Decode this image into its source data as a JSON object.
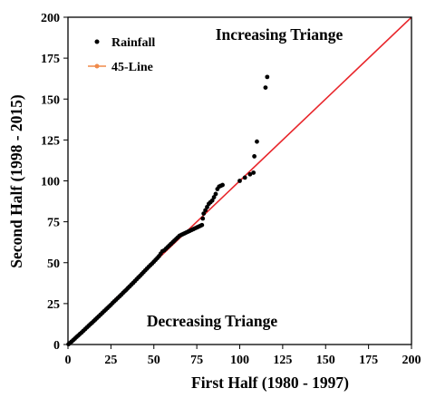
{
  "chart_data": {
    "type": "scatter",
    "xlabel": "First Half (1980 - 1997)",
    "ylabel": "Second Half (1998 - 2015)",
    "xlim": [
      0,
      200
    ],
    "ylim": [
      0,
      200
    ],
    "xticks": [
      0,
      25,
      50,
      75,
      100,
      125,
      150,
      175,
      200
    ],
    "yticks": [
      0,
      25,
      50,
      75,
      100,
      125,
      150,
      175,
      200
    ],
    "grid": false,
    "legend_position": "top-left",
    "annotations": {
      "upper": "Increasing Triange",
      "lower": "Decreasing Triange"
    },
    "series": [
      {
        "name": "Rainfall",
        "kind": "points",
        "color": "#000000",
        "x": [
          0.3,
          1,
          2,
          3,
          4,
          5,
          6,
          7,
          8,
          9,
          10,
          11,
          12,
          13,
          14,
          15,
          16,
          17,
          18,
          19,
          20,
          21,
          22,
          23,
          24,
          25,
          26,
          27,
          28,
          29,
          30,
          31,
          32,
          33,
          34,
          35,
          36,
          37,
          38,
          39,
          40,
          41,
          42,
          43,
          44,
          45,
          46,
          47,
          48,
          49,
          50,
          51,
          52,
          53,
          54,
          55,
          56,
          57,
          58,
          59,
          60,
          61,
          62,
          63,
          64,
          65,
          66,
          67,
          68,
          69,
          70,
          71,
          72,
          73,
          74,
          75,
          76,
          77,
          78,
          78.5,
          79,
          80,
          81,
          82,
          83,
          84,
          85,
          86,
          87,
          88,
          89,
          90,
          100,
          103,
          106,
          108,
          108.5,
          110,
          115,
          116
        ],
        "y": [
          0.2,
          0.8,
          1.7,
          2.6,
          3.6,
          4.6,
          5.5,
          6.5,
          7.4,
          8.4,
          9.4,
          10.4,
          11.4,
          12.4,
          13.3,
          14.3,
          15.3,
          16.3,
          17.3,
          18.3,
          19.3,
          20.3,
          21.3,
          22.3,
          23.3,
          24.3,
          25.4,
          26.4,
          27.4,
          28.4,
          29.4,
          30.4,
          31.5,
          32.5,
          33.5,
          34.6,
          35.6,
          36.7,
          37.7,
          38.8,
          39.9,
          41,
          42,
          43.1,
          44.2,
          45.3,
          46.4,
          47.5,
          48.5,
          49.5,
          50.6,
          51.7,
          52.8,
          54,
          55.5,
          57,
          57.5,
          58.5,
          59.5,
          60.5,
          61.5,
          62.5,
          63.5,
          64.5,
          65.5,
          66.5,
          67,
          67.5,
          68,
          68.5,
          69,
          69.5,
          70,
          70.5,
          71,
          71.5,
          72,
          72.5,
          73,
          77,
          80,
          82,
          84,
          86,
          87,
          88,
          90,
          92,
          95,
          96.5,
          97,
          97.5,
          100,
          102,
          104,
          105,
          115,
          124,
          157,
          163.5
        ]
      },
      {
        "name": "45-Line",
        "kind": "line",
        "color": "#e8262b",
        "x": [
          0,
          200
        ],
        "y": [
          0,
          200
        ]
      }
    ]
  }
}
